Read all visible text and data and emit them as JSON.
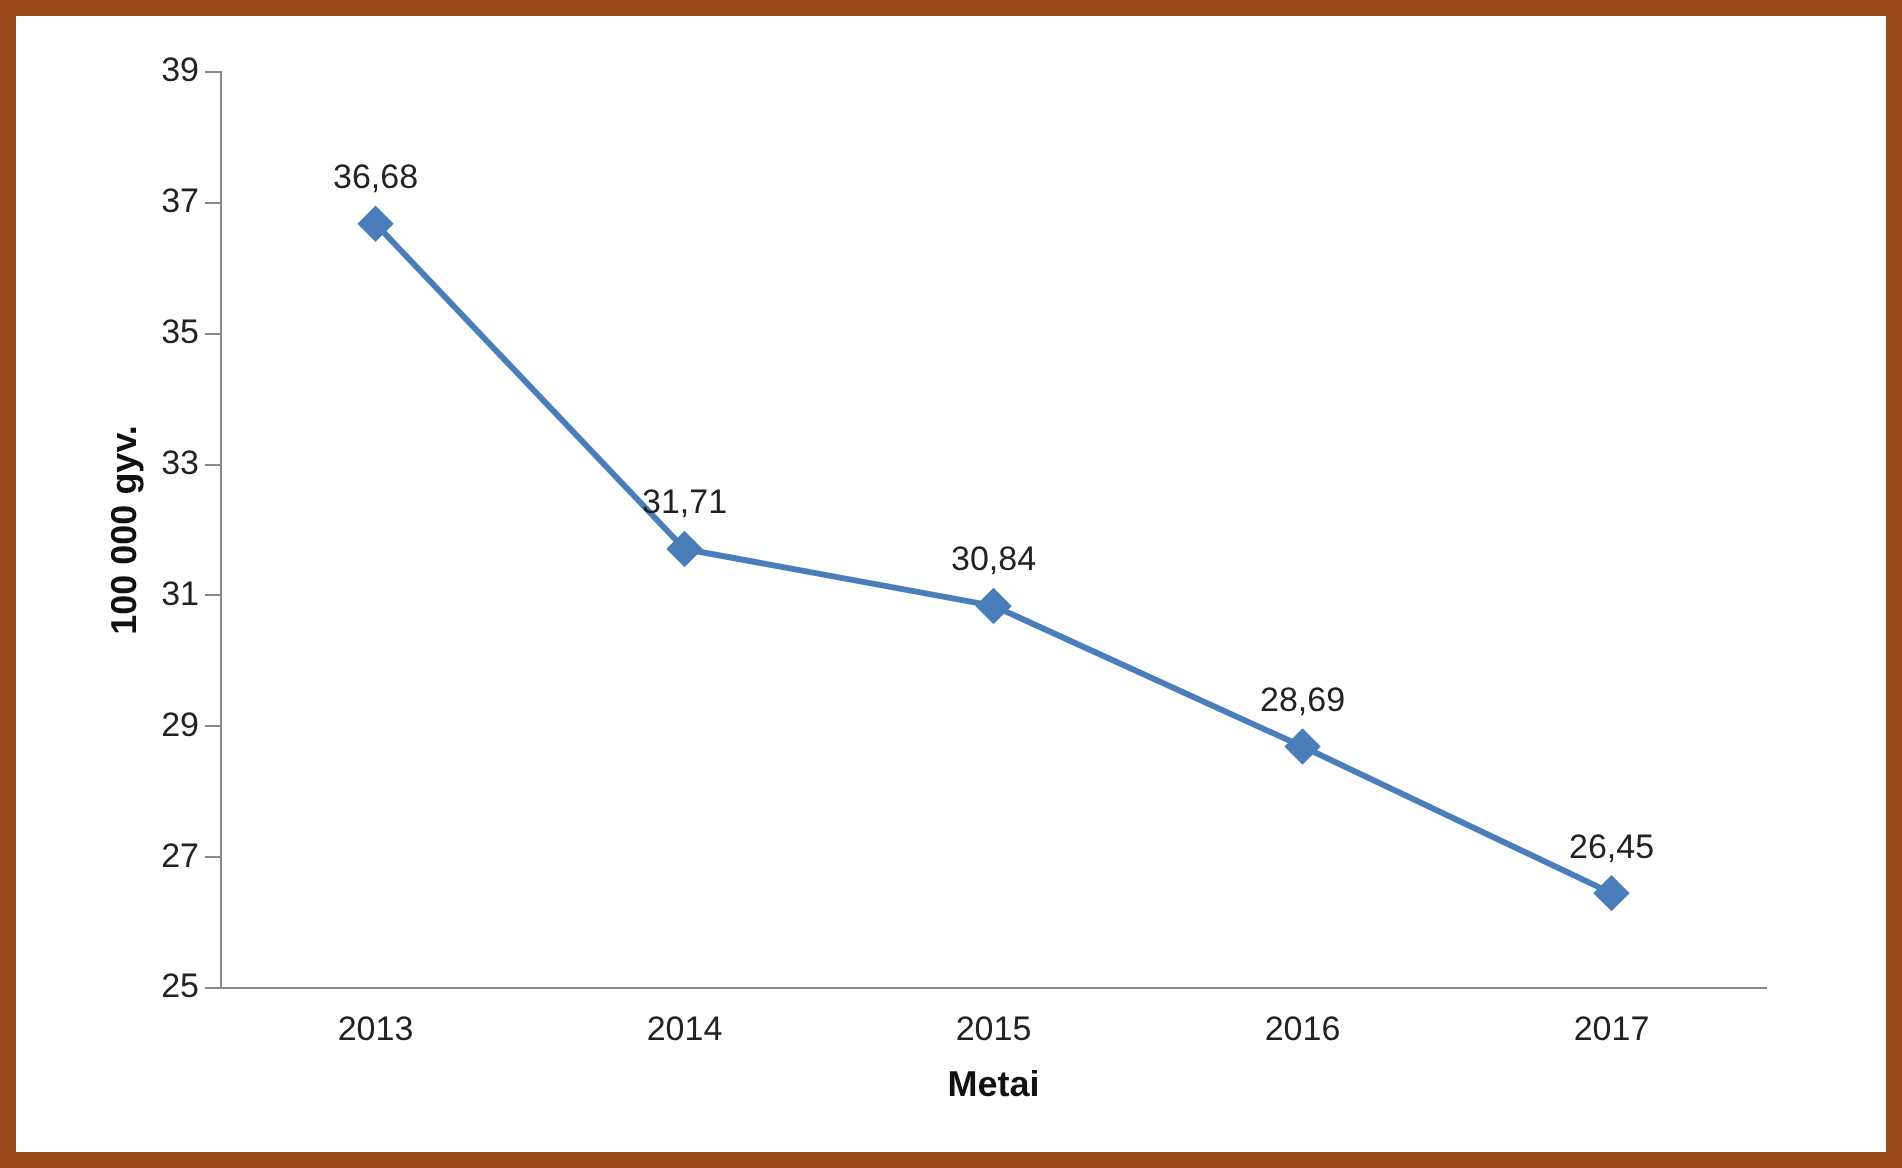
{
  "chart_data": {
    "type": "line",
    "xlabel": "Metai",
    "ylabel": "100 000 gyv.",
    "categories": [
      "2013",
      "2014",
      "2015",
      "2016",
      "2017"
    ],
    "series": [
      {
        "color": "#4a7ebb",
        "values": [
          36.68,
          31.71,
          30.84,
          28.69,
          26.45
        ],
        "value_labels": [
          "36,68",
          "31,71",
          "30,84",
          "28,69",
          "26,45"
        ]
      }
    ],
    "ylim": [
      25,
      39
    ],
    "yticks": [
      25,
      27,
      29,
      31,
      33,
      35,
      37,
      39
    ],
    "grid": false,
    "legend": false,
    "marker": "diamond",
    "line_style": "solid"
  }
}
